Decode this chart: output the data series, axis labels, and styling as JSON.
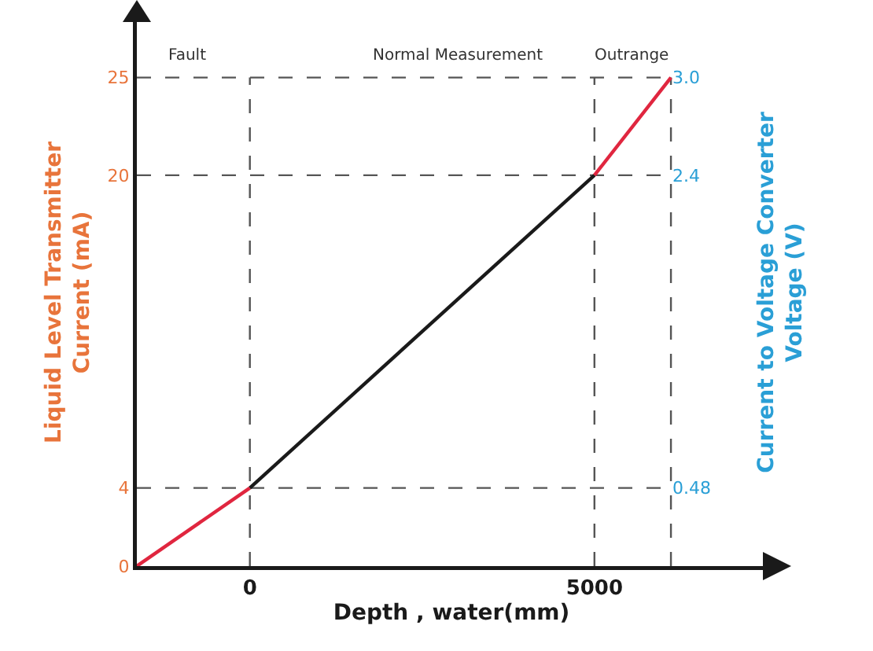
{
  "chart_data": {
    "type": "line",
    "xlabel": "Depth , water(mm)",
    "ylabel": "Liquid Level Transmitter Current (mA)",
    "y2label": "Current to Voltage Converter Voltage (V)",
    "series": [
      {
        "color": "#e0263f",
        "x": [
          -1640,
          0
        ],
        "values": [
          0,
          4
        ]
      },
      {
        "color": "#1a1a1a",
        "x": [
          0,
          5000
        ],
        "values": [
          4,
          20
        ]
      },
      {
        "color": "#e0263f",
        "x": [
          5000,
          6110
        ],
        "values": [
          20,
          25
        ]
      }
    ],
    "xlim": [
      -1640,
      7490
    ],
    "xticks": [
      0,
      5000
    ],
    "ylim": [
      0,
      28
    ],
    "yticks": [
      0,
      4,
      20,
      25
    ],
    "y2lim": [
      0,
      3.36
    ],
    "y2ticks": [
      0.48,
      2.4,
      {
        "value": 3,
        "label": "3.0"
      }
    ],
    "ref_lines": [
      {
        "axis": "x",
        "value": 0,
        "line_style": "dashed",
        "color": "#555555"
      },
      {
        "axis": "x",
        "value": 5000,
        "line_style": "dashed",
        "color": "#555555"
      },
      {
        "axis": "x",
        "value": 6110,
        "line_style": "dashed",
        "color": "#555555"
      },
      {
        "axis": "y",
        "value": 4,
        "line_style": "dashed",
        "color": "#555555"
      },
      {
        "axis": "y",
        "value": 20,
        "line_style": "dashed",
        "color": "#555555"
      },
      {
        "axis": "y",
        "value": 25,
        "line_style": "dashed",
        "color": "#555555"
      }
    ],
    "annotations": [
      {
        "text": "Fault",
        "x": -917,
        "y": 25
      },
      {
        "text": "Normal Measurement",
        "x": 3010,
        "y": 25
      },
      {
        "text": "Outrange",
        "x": 5545,
        "y": 25
      }
    ],
    "grid": false,
    "marker": "none",
    "line_style": "solid"
  }
}
